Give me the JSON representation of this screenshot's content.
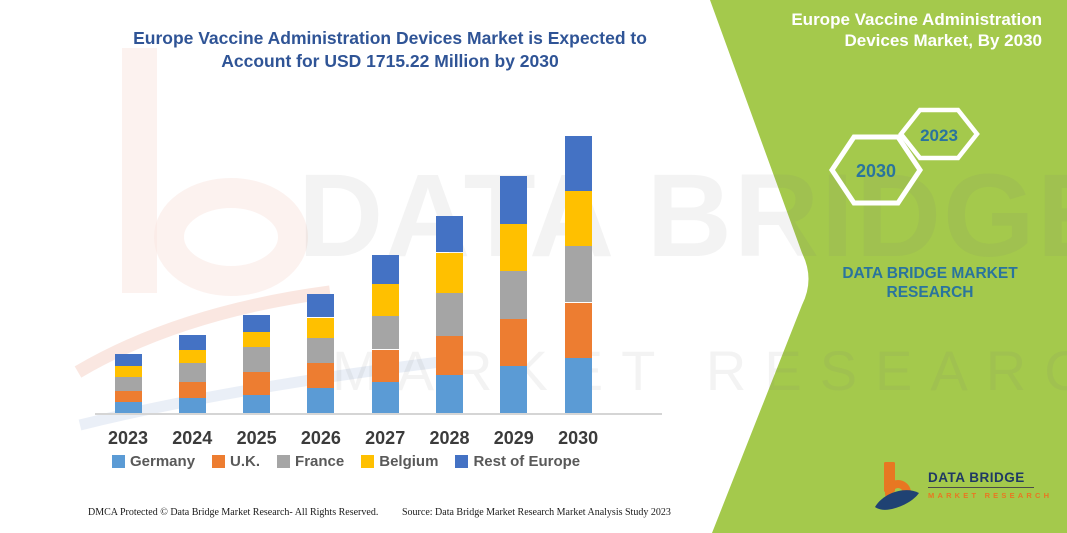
{
  "header": {
    "title_line1": "Europe Vaccine Administration Devices Market is Expected to",
    "title_line2": "Account for USD 1715.22 Million by 2030"
  },
  "side_panel": {
    "title_line1": "Europe Vaccine Administration",
    "title_line2": "Devices Market, By 2030",
    "hexagon_small_label": "2023",
    "hexagon_large_label": "2030",
    "brand_line1": "DATA BRIDGE MARKET",
    "brand_line2": "RESEARCH",
    "logo_title": "DATA BRIDGE",
    "logo_subtitle": "MARKET RESEARCH"
  },
  "watermark": {
    "line1": "DATA BRIDGE",
    "line2": "MARKET RESEARCH"
  },
  "footer": {
    "left": "DMCA Protected © Data Bridge Market Research-  All Rights Reserved.",
    "right": "Source: Data Bridge Market Research  Market Analysis Study 2023"
  },
  "colors": {
    "green_panel": "#A4C94C",
    "teal_text": "#2A749D",
    "title_blue": "#2F5496",
    "legend_text": "#595959",
    "tick_text": "#3B3B3B",
    "axis_line": "#D5D5D5",
    "logo_navy": "#1F3864",
    "logo_orange": "#E87722"
  },
  "chart_data": {
    "type": "bar",
    "stacked": true,
    "title": "Europe Vaccine Administration Devices Market is Expected to Account for USD 1715.22 Million by 2030",
    "categories": [
      "2023",
      "2024",
      "2025",
      "2026",
      "2027",
      "2028",
      "2029",
      "2030"
    ],
    "series": [
      {
        "name": "Germany",
        "color": "#5B9BD5",
        "values": [
          76,
          97,
          117,
          159,
          199,
          241,
          296,
          344
        ]
      },
      {
        "name": "U.K.",
        "color": "#ED7D31",
        "values": [
          68,
          103,
          144,
          154,
          199,
          241,
          288,
          344
        ]
      },
      {
        "name": "France",
        "color": "#A5A5A5",
        "values": [
          82,
          113,
          154,
          154,
          206,
          267,
          300,
          350
        ]
      },
      {
        "name": "Belgium",
        "color": "#FFC000",
        "values": [
          72,
          82,
          93,
          128,
          197,
          247,
          288,
          341
        ]
      },
      {
        "name": "Rest of Europe",
        "color": "#4472C4",
        "values": [
          70,
          93,
          103,
          144,
          179,
          226,
          296,
          336.22
        ]
      }
    ],
    "totals": [
      368,
      488,
      611,
      739,
      980,
      1222,
      1468,
      1715.22
    ],
    "units": "USD Million (estimated from bar heights; 2030 total anchored to USD 1715.22 Million)",
    "xlabel": "",
    "ylabel": "",
    "y_axis": "hidden",
    "gridlines": false,
    "legend_position": "bottom"
  }
}
